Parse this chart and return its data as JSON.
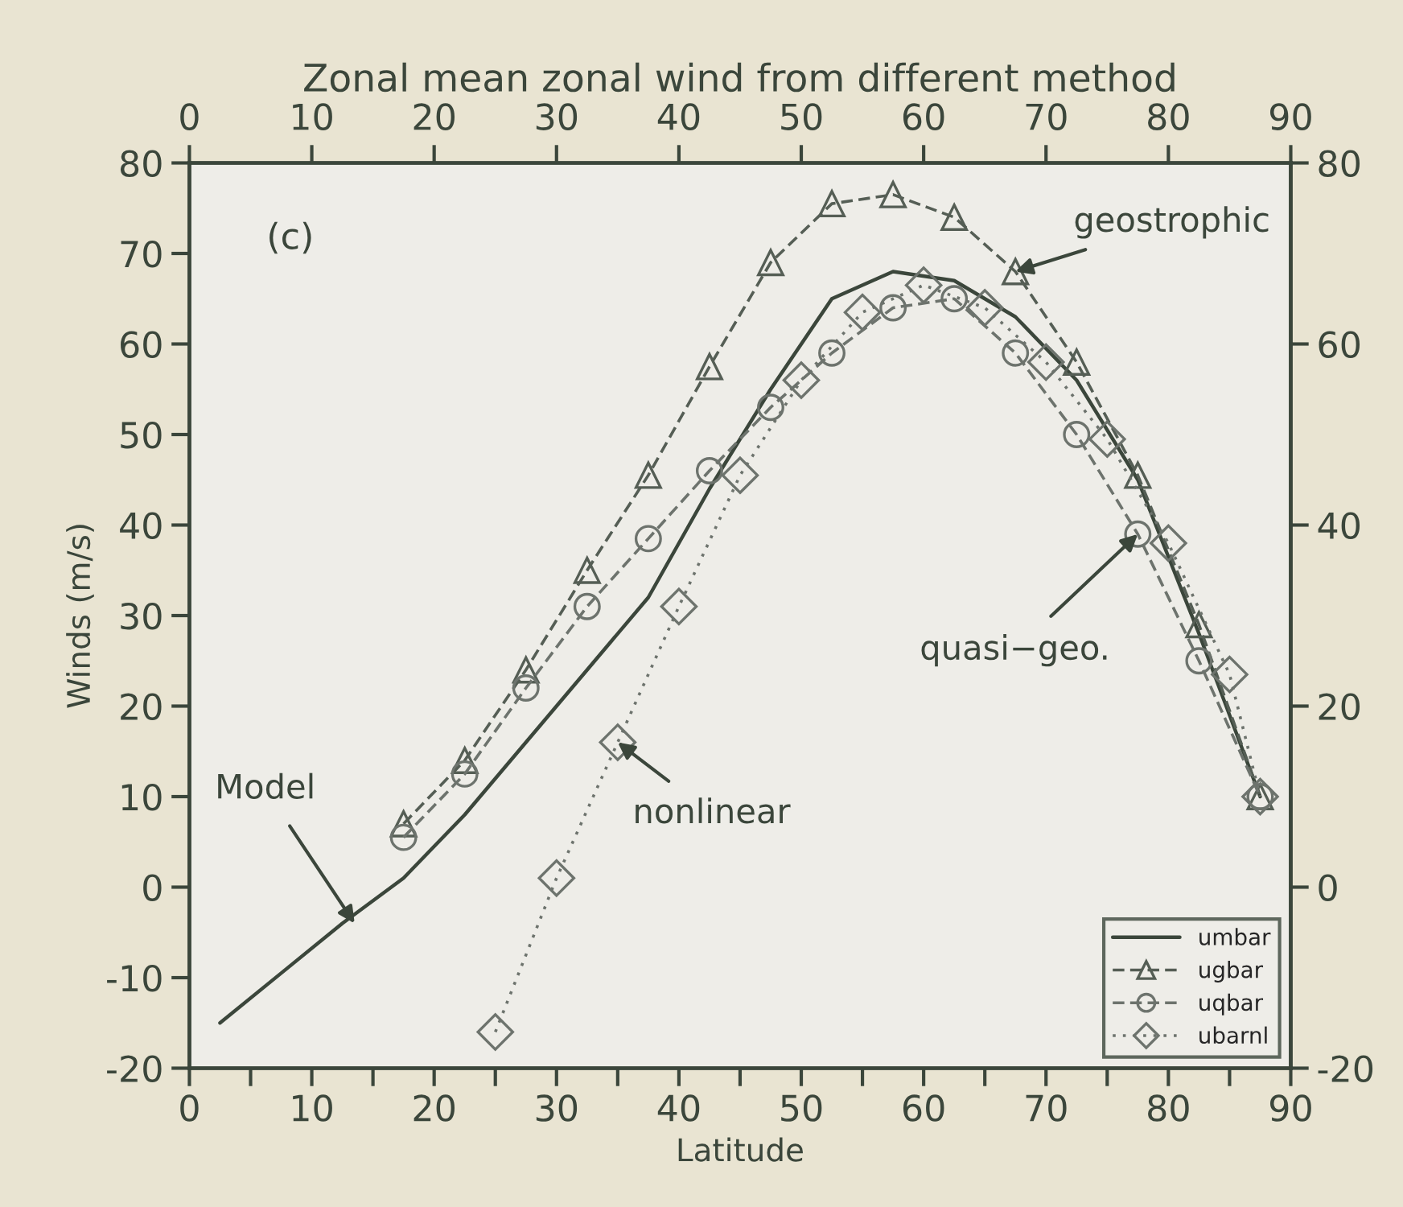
{
  "chart_data": {
    "type": "line",
    "title": "Zonal mean zonal wind from different method",
    "xlabel": "Latitude",
    "ylabel": "Winds (m/s)",
    "xlim": [
      0,
      90
    ],
    "xticks": [
      0,
      {
        "value": 5,
        "label": null
      },
      10,
      {
        "value": 15,
        "label": null
      },
      20,
      {
        "value": 25,
        "label": null
      },
      30,
      {
        "value": 35,
        "label": null
      },
      40,
      {
        "value": 45,
        "label": null
      },
      50,
      {
        "value": 55,
        "label": null
      },
      60,
      {
        "value": 65,
        "label": null
      },
      70,
      {
        "value": 75,
        "label": null
      },
      80,
      {
        "value": 85,
        "label": null
      },
      90
    ],
    "x2lim": [
      0,
      90
    ],
    "x2ticks": [
      0,
      10,
      20,
      30,
      40,
      50,
      60,
      70,
      80,
      90
    ],
    "ylim": [
      -20,
      80
    ],
    "yticks": [
      -20,
      -10,
      0,
      10,
      20,
      30,
      40,
      50,
      60,
      70,
      80
    ],
    "y2lim": [
      -20,
      80
    ],
    "y2ticks": [
      -20,
      0,
      20,
      40,
      60,
      80
    ],
    "grid": false,
    "legend": "bottom right",
    "series": [
      {
        "name": "umbar",
        "color": "#3b463b",
        "marker": "none",
        "line_style": "solid",
        "x": [
          2.5,
          7.5,
          12.5,
          17.5,
          22.5,
          27.5,
          32.5,
          37.5,
          42.5,
          47.5,
          52.5,
          57.5,
          62.5,
          67.5,
          72.5,
          77.5,
          82.5,
          87.5
        ],
        "values": [
          -15,
          -9.5,
          -4,
          1,
          8,
          16,
          24,
          32,
          44,
          55,
          65,
          68,
          67,
          63,
          56,
          45,
          28,
          10
        ]
      },
      {
        "name": "ugbar",
        "color": "#555e55",
        "marker": "triangle",
        "line_style": "dashed",
        "x": [
          17.5,
          22.5,
          27.5,
          32.5,
          37.5,
          42.5,
          47.5,
          52.5,
          57.5,
          62.5,
          67.5,
          72.5,
          77.5,
          82.5,
          87.5
        ],
        "values": [
          7,
          14,
          24,
          35,
          45.5,
          57.5,
          69,
          75.5,
          76.5,
          74,
          68,
          58,
          45.5,
          29,
          10
        ]
      },
      {
        "name": "uqbar",
        "color": "#6d736d",
        "marker": "circle",
        "line_style": "dashed",
        "x": [
          17.5,
          22.5,
          27.5,
          32.5,
          37.5,
          42.5,
          47.5,
          52.5,
          57.5,
          62.5,
          67.5,
          72.5,
          77.5,
          82.5,
          87.5
        ],
        "values": [
          5.5,
          12.5,
          22,
          31,
          38.5,
          46,
          53,
          59,
          64,
          65,
          59,
          50,
          39,
          25,
          10
        ]
      },
      {
        "name": "ubarnl",
        "color": "#6d736d",
        "marker": "diamond",
        "line_style": "dotted",
        "x": [
          25,
          30,
          35,
          40,
          45,
          50,
          55,
          60,
          65,
          70,
          75,
          80,
          85,
          87.5
        ],
        "values": [
          -16,
          1,
          16,
          31,
          45.5,
          56,
          63.5,
          66.5,
          64,
          58,
          49.5,
          38,
          23.5,
          10
        ]
      }
    ],
    "annotations": [
      "(c)",
      {
        "text": "geostrophic",
        "x": 67.5,
        "y": 68
      },
      {
        "text": "quasi−geo.",
        "x": 77.5,
        "y": 39
      },
      {
        "text": "Model",
        "x": 13.5,
        "y": -4
      },
      {
        "text": "nonlinear",
        "x": 35,
        "y": 16
      }
    ]
  }
}
